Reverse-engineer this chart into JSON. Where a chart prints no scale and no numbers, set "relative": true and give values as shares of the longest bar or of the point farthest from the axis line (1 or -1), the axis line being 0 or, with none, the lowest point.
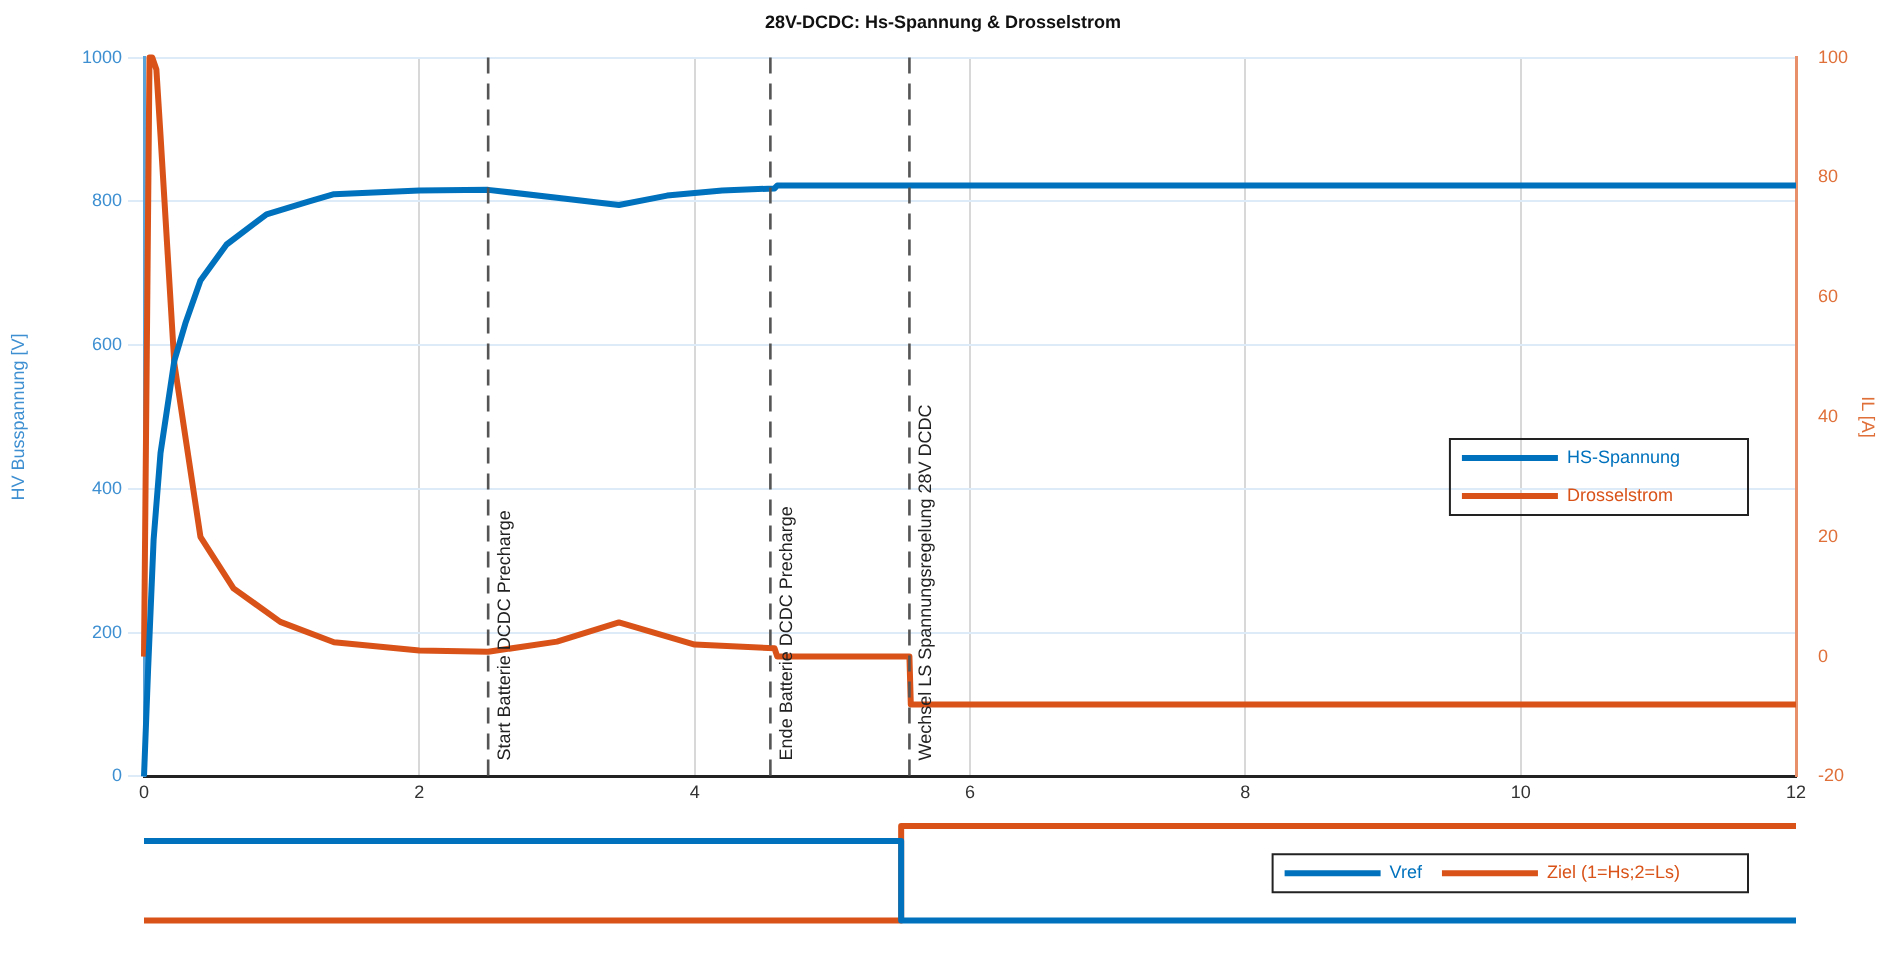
{
  "chart_data": [
    {
      "type": "line",
      "title": "28V-DCDC: Hs-Spannung & Drosselstrom",
      "ylabel": "HV Busspannung [V]",
      "y2label": "IL [A]",
      "xlim": [
        0,
        12
      ],
      "xticks": [
        0,
        2,
        4,
        6,
        8,
        10,
        12
      ],
      "ylim": [
        0,
        1000
      ],
      "yticks": [
        0,
        200,
        400,
        600,
        800,
        1000
      ],
      "y2lim": [
        -20,
        100
      ],
      "y2ticks": [
        -20,
        0,
        20,
        40,
        60,
        80,
        100
      ],
      "grid": true,
      "legend": "right",
      "line_style": "solid",
      "marker": "none",
      "series": [
        {
          "name": "HS-Spannung",
          "color": "#0072bd",
          "x": [
            0,
            0.03,
            0.07,
            0.12,
            0.22,
            0.3,
            0.41,
            0.6,
            0.89,
            1.2,
            1.38,
            2,
            2.5,
            3,
            3.45,
            3.8,
            4.2,
            4.58,
            4.6,
            12
          ],
          "values": [
            0,
            150,
            330,
            450,
            578,
            630,
            690,
            740,
            782,
            800,
            810,
            815,
            816,
            805,
            795,
            808,
            815,
            818,
            822,
            822
          ]
        },
        {
          "name": "Drosselstrom",
          "color": "#d95319",
          "axis": "y2",
          "x": [
            0,
            0.04,
            0.06,
            0.09,
            0.12,
            0.22,
            0.41,
            0.65,
            0.99,
            1.38,
            2,
            2.5,
            3,
            3.45,
            4,
            4.58,
            4.6,
            5.56,
            5.57,
            12
          ],
          "values": [
            0,
            100,
            100,
            98,
            87,
            49,
            20,
            11.4,
            5.8,
            2.4,
            1,
            0.8,
            2.5,
            5.7,
            2,
            1.4,
            0,
            0,
            -8,
            -8
          ]
        }
      ],
      "ref_lines": [
        {
          "axis": "x",
          "value": 2.5,
          "label": "Start Batterie DCDC Precharge",
          "color": "#555555",
          "line_style": "dashed"
        },
        {
          "axis": "x",
          "value": 4.55,
          "label": "Ende Batterie DCDC Precharge",
          "color": "#555555",
          "line_style": "dashed"
        },
        {
          "axis": "x",
          "value": 5.56,
          "label": "Wechsel LS Spannungsregelung 28V DCDC",
          "color": "#555555",
          "line_style": "dashed"
        }
      ]
    },
    {
      "type": "step",
      "relative": true,
      "grid": false,
      "legend": "right",
      "line_style": "solid",
      "marker": "none",
      "categories": [
        null,
        null,
        null,
        null,
        null,
        null,
        null,
        null,
        null,
        null,
        null,
        null,
        null,
        null,
        null,
        null,
        null,
        null,
        null,
        null,
        null,
        null,
        null,
        null,
        null
      ],
      "series": [
        {
          "name": "Vref",
          "color": "#0072bd",
          "values": [
            0.84,
            0.84,
            0.84,
            0.84,
            0.84,
            0.84,
            0.84,
            0.84,
            0.84,
            0.84,
            0.84,
            0,
            0,
            0,
            0,
            0,
            0,
            0,
            0,
            0,
            0,
            0,
            0,
            0,
            0
          ]
        },
        {
          "name": "Ziel (1=Hs;2=Ls)",
          "color": "#d95319",
          "values": [
            0,
            0,
            0,
            0,
            0,
            0,
            0,
            0,
            0,
            0,
            0,
            1,
            1,
            1,
            1,
            1,
            1,
            1,
            1,
            1,
            1,
            1,
            1,
            1,
            1
          ]
        }
      ]
    }
  ]
}
